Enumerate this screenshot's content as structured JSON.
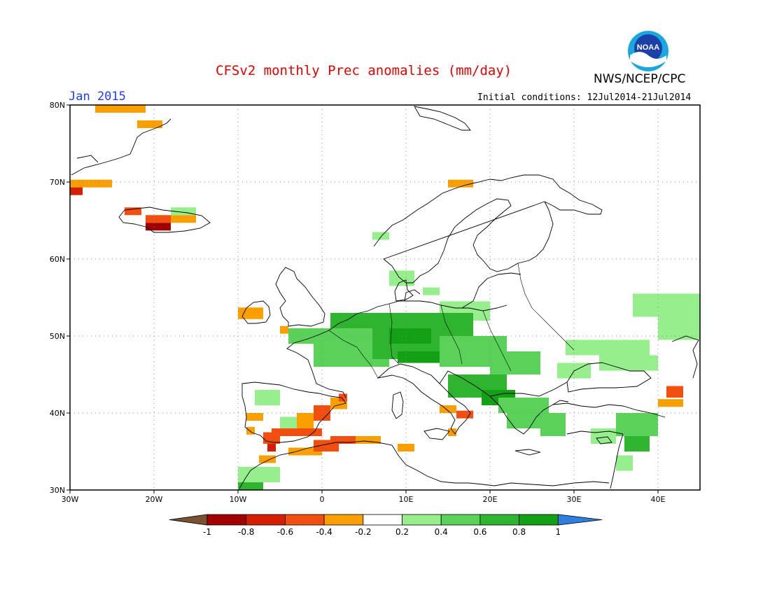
{
  "header": {
    "title": "CFSv2 monthly Prec anomalies (mm/day)",
    "month": "Jan 2015",
    "initial_conditions": "Initial conditions: 12Jul2014-21Jul2014",
    "agency": "NWS/NCEP/CPC",
    "logo_text": "NOAA"
  },
  "map": {
    "lon_ticks": [
      {
        "lon": -30,
        "label": "30W"
      },
      {
        "lon": -20,
        "label": "20W"
      },
      {
        "lon": -10,
        "label": "10W"
      },
      {
        "lon": 0,
        "label": "0"
      },
      {
        "lon": 10,
        "label": "10E"
      },
      {
        "lon": 20,
        "label": "20E"
      },
      {
        "lon": 30,
        "label": "30E"
      },
      {
        "lon": 40,
        "label": "40E"
      }
    ],
    "lat_ticks": [
      {
        "lat": 80,
        "label": "80N"
      },
      {
        "lat": 70,
        "label": "70N"
      },
      {
        "lat": 60,
        "label": "60N"
      },
      {
        "lat": 50,
        "label": "50N"
      },
      {
        "lat": 40,
        "label": "40N"
      },
      {
        "lat": 30,
        "label": "30N"
      }
    ],
    "extent": {
      "lon_min": -30,
      "lon_max": 45,
      "lat_min": 30,
      "lat_max": 80
    },
    "anomaly_cells": [
      {
        "lon": -27,
        "lat": 79,
        "w": 6,
        "h": 2,
        "v": -0.3
      },
      {
        "lon": -22,
        "lat": 77,
        "w": 3,
        "h": 1,
        "v": -0.3
      },
      {
        "lon": -30,
        "lat": 69.3,
        "w": 5,
        "h": 1,
        "v": -0.3
      },
      {
        "lon": -30,
        "lat": 68.3,
        "w": 1.5,
        "h": 1,
        "v": -0.7
      },
      {
        "lon": -23.5,
        "lat": 65.7,
        "w": 2,
        "h": 1,
        "v": -0.5
      },
      {
        "lon": -21,
        "lat": 64.7,
        "w": 3,
        "h": 1,
        "v": -0.5
      },
      {
        "lon": -18,
        "lat": 64.7,
        "w": 3,
        "h": 1,
        "v": -0.3
      },
      {
        "lon": -21,
        "lat": 63.7,
        "w": 3,
        "h": 1,
        "v": -0.9
      },
      {
        "lon": -18,
        "lat": 65.7,
        "w": 3,
        "h": 1,
        "v": 0.3
      },
      {
        "lon": -10,
        "lat": 52.2,
        "w": 3,
        "h": 1.5,
        "v": -0.3
      },
      {
        "lon": -5,
        "lat": 50.3,
        "w": 1,
        "h": 1,
        "v": -0.3
      },
      {
        "lon": 15,
        "lat": 69.3,
        "w": 3,
        "h": 1,
        "v": -0.4
      },
      {
        "lon": 6,
        "lat": 62.5,
        "w": 2,
        "h": 1,
        "v": 0.3
      },
      {
        "lon": 8,
        "lat": 56.5,
        "w": 3,
        "h": 2,
        "v": 0.3
      },
      {
        "lon": 12,
        "lat": 55.3,
        "w": 2,
        "h": 1,
        "v": 0.3
      },
      {
        "lon": 14,
        "lat": 52,
        "w": 6,
        "h": 2.5,
        "v": 0.3
      },
      {
        "lon": -4,
        "lat": 49,
        "w": 10,
        "h": 2,
        "v": 0.5
      },
      {
        "lon": -1,
        "lat": 46,
        "w": 9,
        "h": 3,
        "v": 0.5
      },
      {
        "lon": 1,
        "lat": 51,
        "w": 6,
        "h": 2,
        "v": 0.6
      },
      {
        "lon": 6,
        "lat": 47,
        "w": 12,
        "h": 6,
        "v": 0.6
      },
      {
        "lon": 8,
        "lat": 49,
        "w": 5,
        "h": 2,
        "v": 0.8
      },
      {
        "lon": 9,
        "lat": 46.5,
        "w": 8,
        "h": 1.5,
        "v": 0.8
      },
      {
        "lon": 14,
        "lat": 46,
        "w": 8,
        "h": 4,
        "v": 0.5
      },
      {
        "lon": 20,
        "lat": 45,
        "w": 6,
        "h": 3,
        "v": 0.5
      },
      {
        "lon": 15,
        "lat": 42,
        "w": 7,
        "h": 3,
        "v": 0.7
      },
      {
        "lon": 19,
        "lat": 41,
        "w": 4,
        "h": 2,
        "v": 0.8
      },
      {
        "lon": 21,
        "lat": 40,
        "w": 6,
        "h": 2,
        "v": 0.4
      },
      {
        "lon": 22,
        "lat": 38,
        "w": 4,
        "h": 2,
        "v": 0.4
      },
      {
        "lon": 26,
        "lat": 37,
        "w": 3,
        "h": 3,
        "v": 0.4
      },
      {
        "lon": 28,
        "lat": 44.5,
        "w": 4,
        "h": 2,
        "v": 0.3
      },
      {
        "lon": 29,
        "lat": 47.5,
        "w": 10,
        "h": 2,
        "v": 0.3
      },
      {
        "lon": 33,
        "lat": 45.5,
        "w": 7,
        "h": 2,
        "v": 0.3
      },
      {
        "lon": 37,
        "lat": 52.5,
        "w": 8,
        "h": 3,
        "v": 0.3
      },
      {
        "lon": 40,
        "lat": 49.5,
        "w": 5,
        "h": 3,
        "v": 0.3
      },
      {
        "lon": 41,
        "lat": 42,
        "w": 2,
        "h": 1.5,
        "v": -0.5
      },
      {
        "lon": 40,
        "lat": 40.8,
        "w": 3,
        "h": 1,
        "v": -0.3
      },
      {
        "lon": 35,
        "lat": 37,
        "w": 5,
        "h": 3,
        "v": 0.5
      },
      {
        "lon": 36,
        "lat": 35,
        "w": 3,
        "h": 2,
        "v": 0.6
      },
      {
        "lon": 32,
        "lat": 36,
        "w": 3,
        "h": 2,
        "v": 0.3
      },
      {
        "lon": 35,
        "lat": 32.5,
        "w": 2,
        "h": 2,
        "v": 0.3
      },
      {
        "lon": -8,
        "lat": 41,
        "w": 3,
        "h": 2,
        "v": 0.3
      },
      {
        "lon": -5,
        "lat": 38,
        "w": 3,
        "h": 1.5,
        "v": 0.3
      },
      {
        "lon": -9,
        "lat": 39,
        "w": 2,
        "h": 1,
        "v": -0.3
      },
      {
        "lon": -9,
        "lat": 37.2,
        "w": 1,
        "h": 1,
        "v": -0.3
      },
      {
        "lon": -6,
        "lat": 37,
        "w": 6,
        "h": 1,
        "v": -0.5
      },
      {
        "lon": -3,
        "lat": 38,
        "w": 2,
        "h": 2,
        "v": -0.3
      },
      {
        "lon": -1,
        "lat": 39,
        "w": 2,
        "h": 2,
        "v": -0.5
      },
      {
        "lon": 1,
        "lat": 40.5,
        "w": 2,
        "h": 1.5,
        "v": -0.3
      },
      {
        "lon": 2,
        "lat": 41.5,
        "w": 1,
        "h": 1,
        "v": -0.5
      },
      {
        "lon": -7,
        "lat": 36,
        "w": 2,
        "h": 1.5,
        "v": -0.6
      },
      {
        "lon": -6.5,
        "lat": 35,
        "w": 1,
        "h": 1,
        "v": -0.8
      },
      {
        "lon": -7.5,
        "lat": 33.5,
        "w": 2,
        "h": 1,
        "v": -0.3
      },
      {
        "lon": -4,
        "lat": 34.5,
        "w": 4,
        "h": 1,
        "v": -0.3
      },
      {
        "lon": -1,
        "lat": 35,
        "w": 3,
        "h": 1.5,
        "v": -0.5
      },
      {
        "lon": 1,
        "lat": 36,
        "w": 3,
        "h": 1,
        "v": -0.6
      },
      {
        "lon": 4,
        "lat": 36,
        "w": 3,
        "h": 1,
        "v": -0.3
      },
      {
        "lon": 9,
        "lat": 35,
        "w": 2,
        "h": 1,
        "v": -0.3
      },
      {
        "lon": 14,
        "lat": 40,
        "w": 2,
        "h": 1,
        "v": -0.3
      },
      {
        "lon": 16,
        "lat": 39.3,
        "w": 2,
        "h": 1,
        "v": -0.5
      },
      {
        "lon": 15,
        "lat": 37,
        "w": 1,
        "h": 1,
        "v": -0.3
      },
      {
        "lon": -10,
        "lat": 31,
        "w": 5,
        "h": 2,
        "v": 0.3
      },
      {
        "lon": -10,
        "lat": 30,
        "w": 3,
        "h": 1,
        "v": 0.7
      }
    ]
  },
  "colorbar": {
    "colors": [
      "#7a5232",
      "#a00000",
      "#d42000",
      "#f24e0f",
      "#f9a000",
      "#ffffff",
      "#96ee8c",
      "#5ad25a",
      "#2eb42e",
      "#14a014",
      "#2f7fe0"
    ],
    "labels": [
      "-1",
      "-0.8",
      "-0.6",
      "-0.4",
      "-0.2",
      "0.2",
      "0.4",
      "0.6",
      "0.8",
      "1"
    ]
  }
}
